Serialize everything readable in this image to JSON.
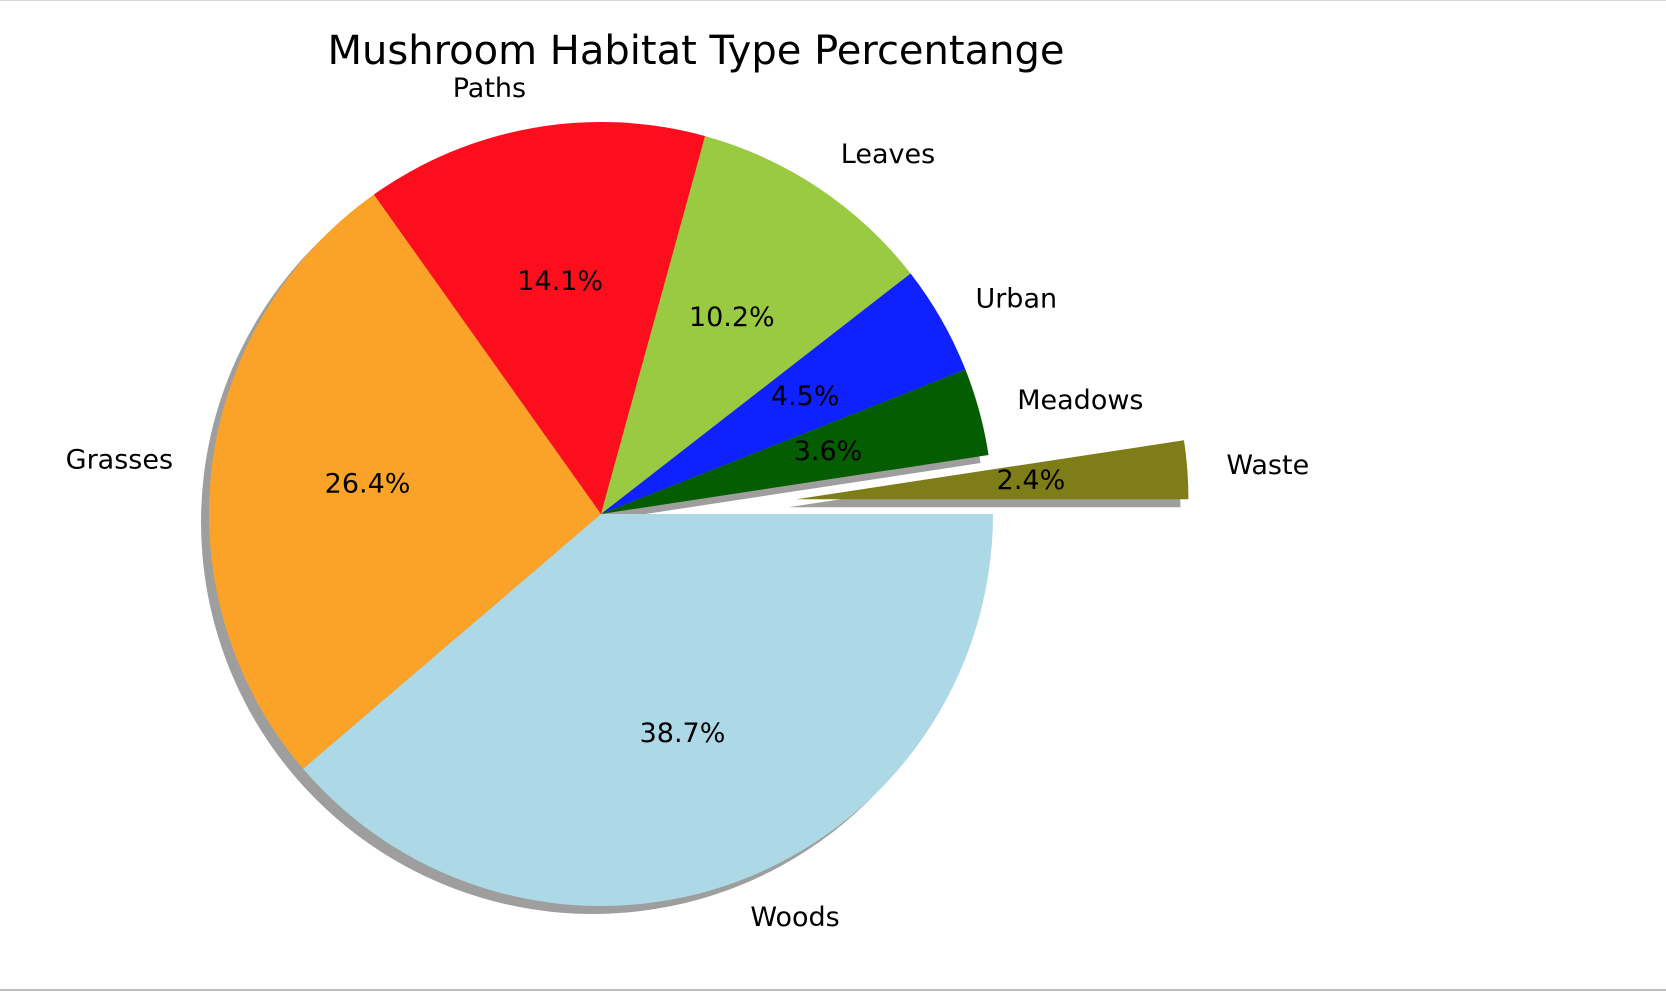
{
  "chart_data": {
    "type": "pie",
    "title": "Mushroom Habitat Type Percentange",
    "start_angle_deg": 0,
    "direction": "clockwise",
    "shadow": true,
    "slices": [
      {
        "label": "Woods",
        "value": 38.7,
        "pct_label": "38.7%",
        "color": "#add8e6",
        "explode": 0
      },
      {
        "label": "Grasses",
        "value": 26.4,
        "pct_label": "26.4%",
        "color": "#fba329",
        "explode": 0
      },
      {
        "label": "Paths",
        "value": 14.1,
        "pct_label": "14.1%",
        "color": "#fd0e1c",
        "explode": 0
      },
      {
        "label": "Leaves",
        "value": 10.2,
        "pct_label": "10.2%",
        "color": "#9aca42",
        "explode": 0
      },
      {
        "label": "Urban",
        "value": 4.5,
        "pct_label": "4.5%",
        "color": "#0f21ff",
        "explode": 0
      },
      {
        "label": "Meadows",
        "value": 3.6,
        "pct_label": "3.6%",
        "color": "#045d00",
        "explode": 0
      },
      {
        "label": "Waste",
        "value": 2.4,
        "pct_label": "2.4%",
        "color": "#7f7d17",
        "explode": 0.5
      }
    ]
  }
}
